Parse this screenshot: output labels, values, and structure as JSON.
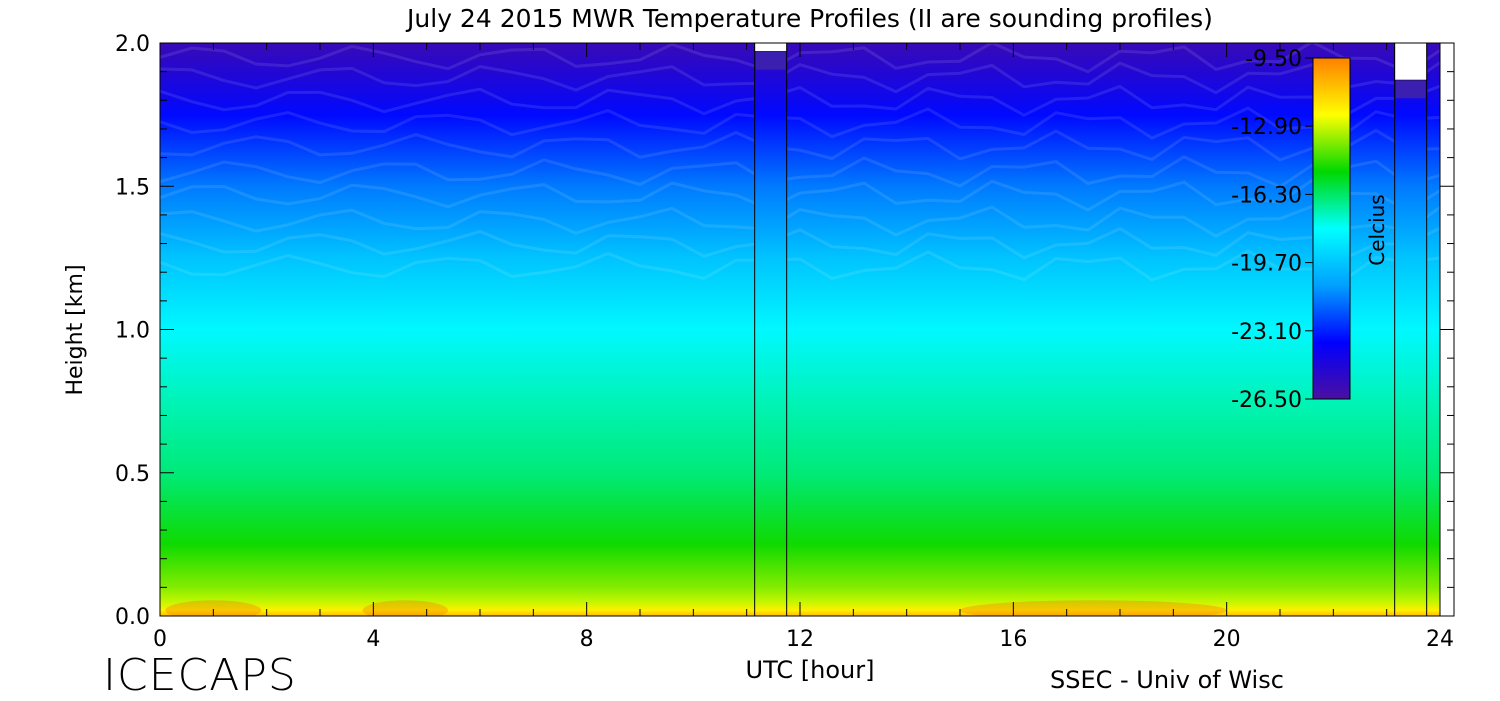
{
  "chart_data": {
    "type": "heatmap",
    "title": "July 24 2015 MWR Temperature Profiles (II are sounding profiles)",
    "xlabel": "UTC [hour]",
    "ylabel": "Height [km]",
    "x_ticks": [
      "0",
      "4",
      "8",
      "12",
      "16",
      "20",
      "24"
    ],
    "y_ticks": [
      "0.0",
      "0.5",
      "1.0",
      "1.5",
      "2.0"
    ],
    "xlim": [
      0,
      24
    ],
    "ylim": [
      0,
      2.0
    ],
    "colorbar": {
      "label": "Celcius",
      "ticks": [
        "-9.50",
        "-12.90",
        "-16.30",
        "-19.70",
        "-23.10",
        "-26.50"
      ],
      "range": [
        -26.5,
        -9.5
      ],
      "colors": [
        "#4b0fa0",
        "#0000ff",
        "#00a0ff",
        "#00ffff",
        "#00d800",
        "#ffff00",
        "#ff8000"
      ]
    },
    "field_approx": {
      "height_km": [
        0.0,
        0.02,
        0.05,
        0.1,
        0.25,
        0.5,
        0.75,
        1.0,
        1.25,
        1.5,
        1.75,
        1.9,
        2.0
      ],
      "temperature_c": [
        -10.8,
        -12.0,
        -13.0,
        -13.7,
        -15.0,
        -16.5,
        -17.2,
        -18.2,
        -19.8,
        -21.5,
        -23.5,
        -25.0,
        -25.8
      ]
    },
    "sounding_profiles": [
      {
        "x_start": 11.15,
        "x_end": 11.75,
        "top_km": 1.97
      },
      {
        "x_start": 23.15,
        "x_end": 23.75,
        "top_km": 1.87
      }
    ]
  },
  "footer": {
    "left": "ICECAPS",
    "right": "SSEC - Univ of Wisc"
  }
}
